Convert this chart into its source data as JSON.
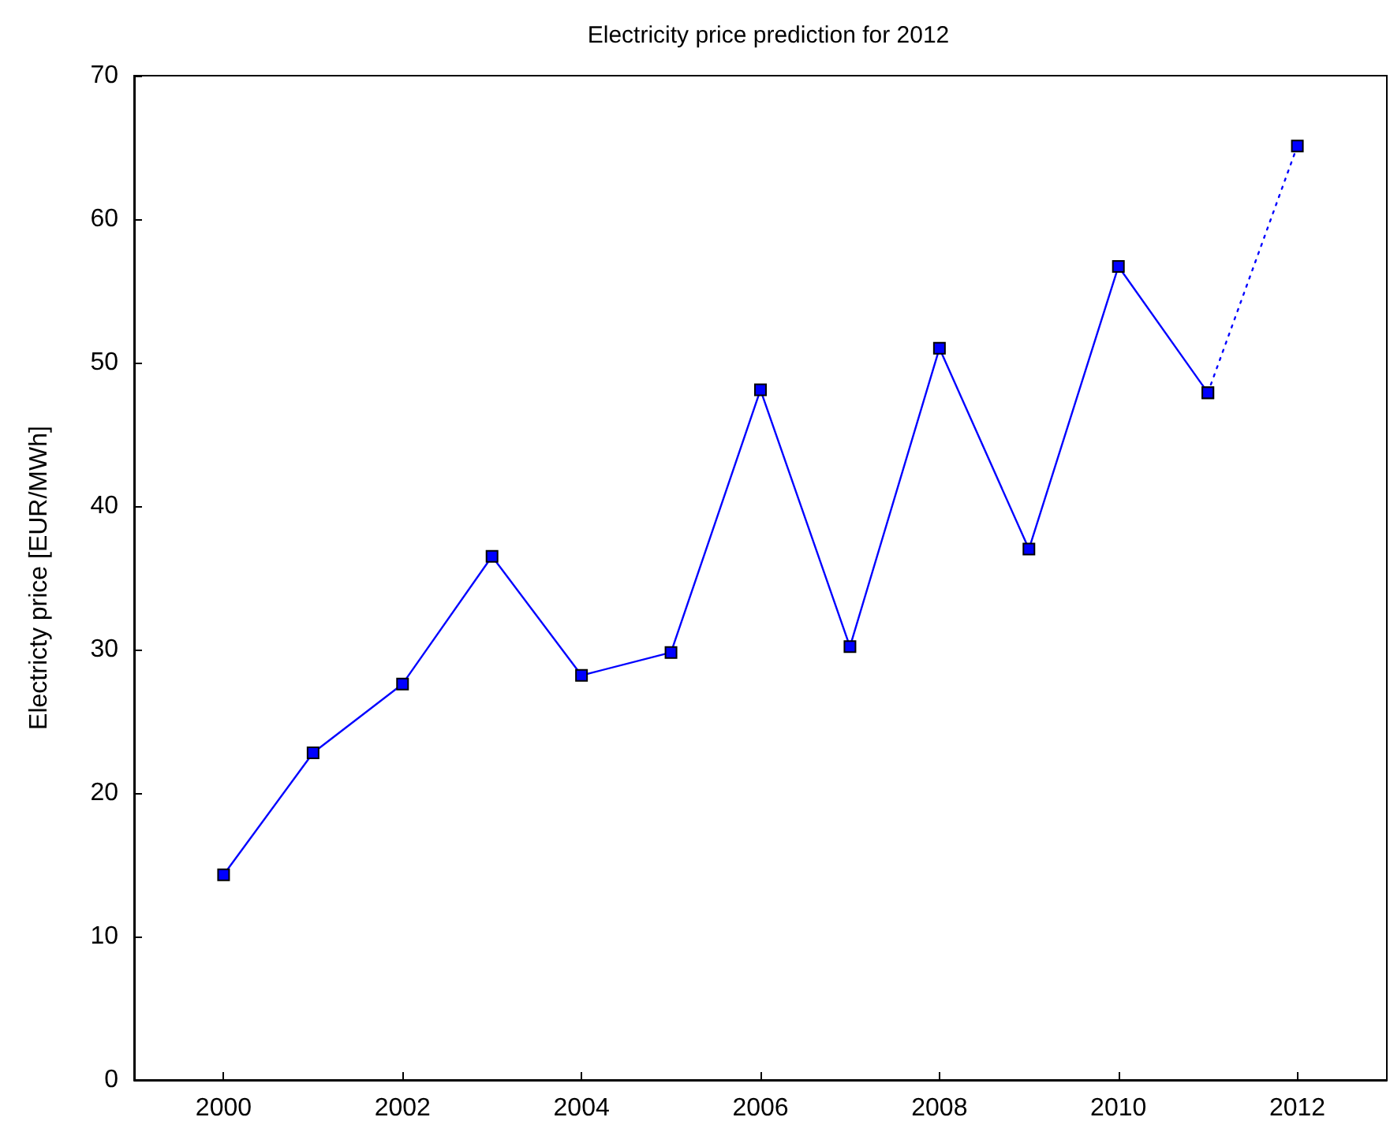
{
  "chart_data": {
    "type": "line",
    "title": "Electricity price prediction for 2012",
    "ylabel": "Electricty price [EUR/MWh]",
    "xlim": [
      1999,
      2013
    ],
    "xticks": [
      2000,
      2002,
      2004,
      2006,
      2008,
      2010,
      2012
    ],
    "ylim": [
      0,
      70
    ],
    "yticks": [
      0,
      10,
      20,
      30,
      40,
      50,
      60,
      70
    ],
    "grid": false,
    "marker": "square",
    "series": [
      {
        "color": "#0000ff",
        "line_style": "solid",
        "x": [
          2000,
          2001,
          2002,
          2003,
          2004,
          2005,
          2006,
          2007,
          2008,
          2009,
          2010,
          2011
        ],
        "values": [
          14.3,
          22.8,
          27.6,
          36.5,
          28.2,
          29.8,
          48.1,
          30.2,
          51.0,
          37.0,
          56.7,
          47.9
        ]
      },
      {
        "color": "#0000ff",
        "line_style": "dotted",
        "x": [
          2011,
          2012
        ],
        "values": [
          47.9,
          65.1
        ]
      }
    ]
  }
}
